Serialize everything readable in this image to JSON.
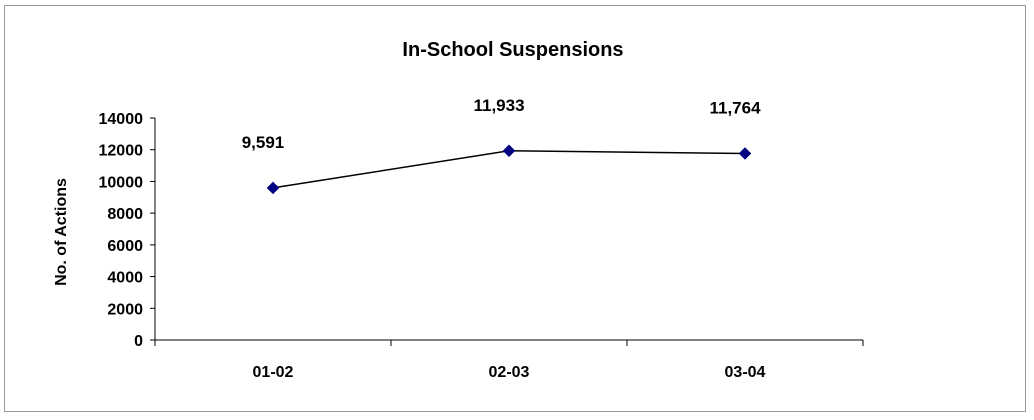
{
  "chart_data": {
    "type": "line",
    "title": "In-School Suspensions",
    "ylabel": "No. of Actions",
    "xlabel": "",
    "categories": [
      "01-02",
      "02-03",
      "03-04"
    ],
    "series": [
      {
        "values": [
          9591,
          11933,
          11764
        ],
        "labels": [
          "9,591",
          "11,933",
          "11,764"
        ],
        "color": "#000080",
        "line_color": "#000000",
        "marker": "diamond"
      }
    ],
    "ylim": [
      0,
      14000
    ],
    "yticks": [
      0,
      2000,
      4000,
      6000,
      8000,
      10000,
      12000,
      14000
    ],
    "grid": false,
    "legend": "none"
  }
}
